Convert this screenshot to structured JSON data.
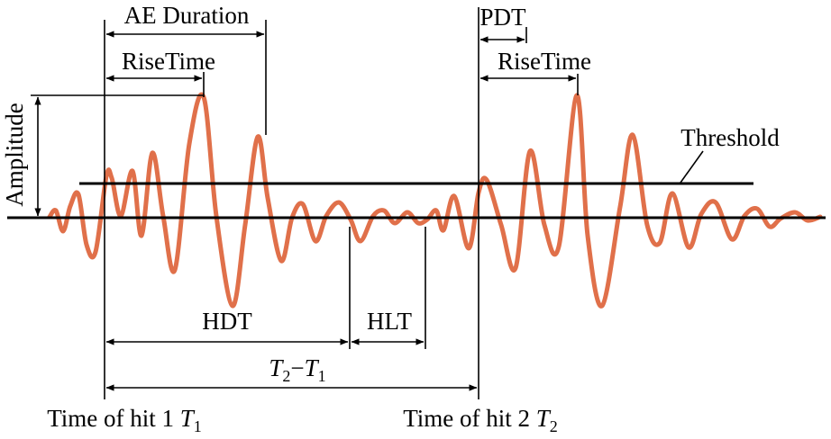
{
  "labels": {
    "ae_duration": "AE Duration",
    "rise_time_1": "RiseTime",
    "rise_time_2": "RiseTime",
    "pdt": "PDT",
    "threshold": "Threshold",
    "amplitude": "Amplitude",
    "hdt": "HDT",
    "hlt": "HLT",
    "t_diff": {
      "t2": "T",
      "sub2": "2",
      "minus": "−",
      "t1": "T",
      "sub1": "1"
    },
    "hit1": {
      "text": "Time of hit 1 ",
      "t": "T",
      "sub": "1"
    },
    "hit2": {
      "text": "Time of hit 2 ",
      "t": "T",
      "sub": "2"
    }
  },
  "colors": {
    "waveform": "#E0704A",
    "lines": "#000000"
  }
}
